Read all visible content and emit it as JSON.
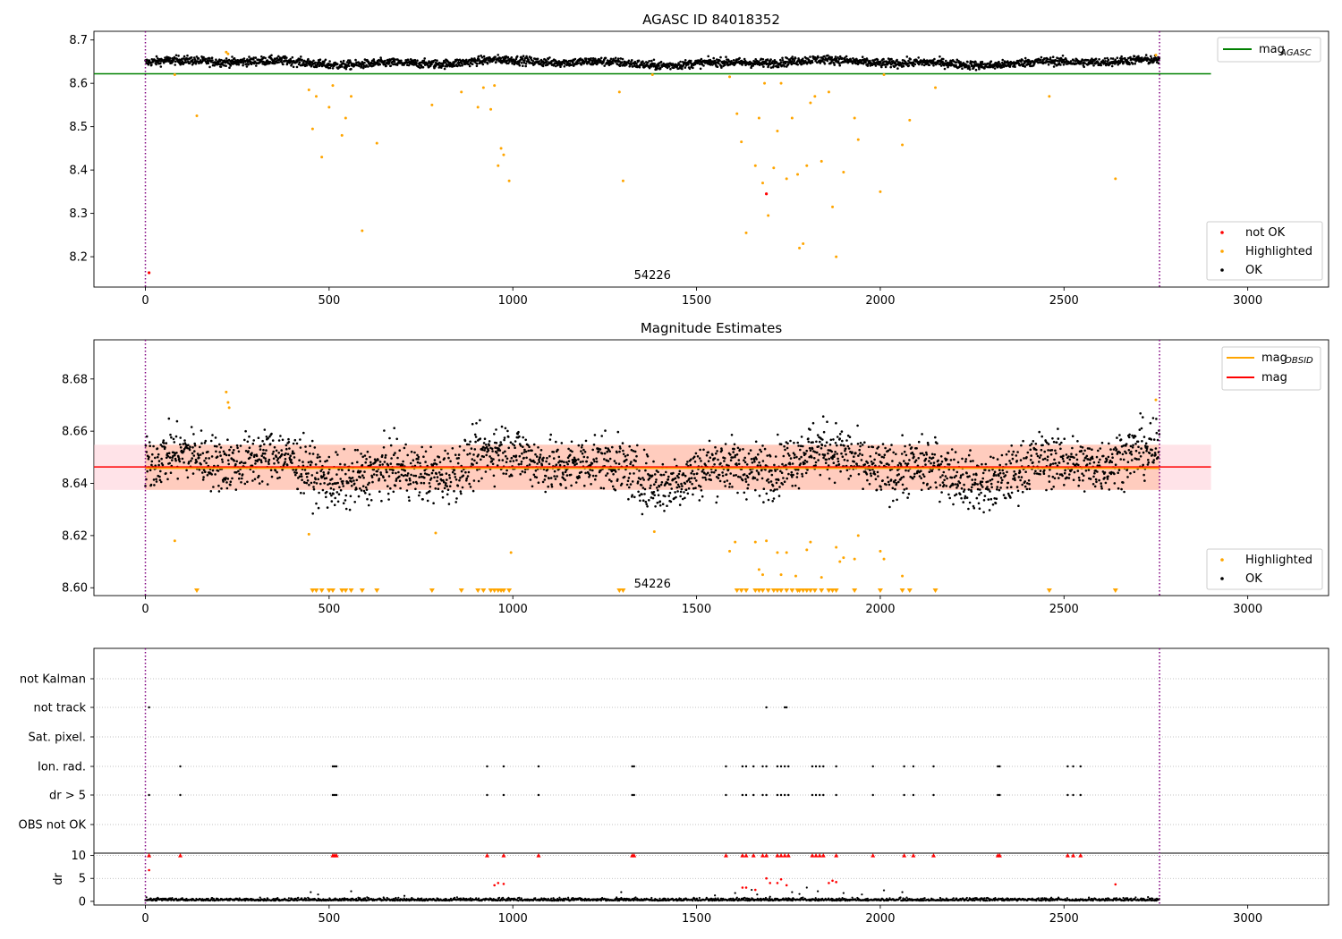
{
  "chart_data": [
    {
      "type": "scatter",
      "title": "AGASC ID 84018352",
      "xlabel": "",
      "ylabel": "",
      "xlim": [
        -140,
        3220
      ],
      "ylim": [
        8.13,
        8.72
      ],
      "x_ticks": [
        0,
        500,
        1000,
        1500,
        2000,
        2500,
        3000
      ],
      "y_ticks": [
        8.2,
        8.3,
        8.4,
        8.5,
        8.6,
        8.7
      ],
      "y_tick_labels": [
        "8.2",
        "8.3",
        "8.4",
        "8.5",
        "8.6",
        "8.7"
      ],
      "obsid_label": "54226",
      "obsid_label_x": 1380,
      "obs_boundaries": [
        0,
        2760
      ],
      "series": [
        {
          "name": "not OK",
          "color": "#ff0000",
          "x": [
            10,
            1690
          ],
          "y": [
            8.163,
            8.345
          ]
        },
        {
          "name": "Highlighted",
          "color": "#ffa500",
          "x": [
            80,
            140,
            220,
            225,
            445,
            455,
            465,
            480,
            500,
            510,
            535,
            545,
            560,
            590,
            630,
            780,
            860,
            905,
            920,
            940,
            950,
            960,
            968,
            975,
            990,
            1290,
            1300,
            1380,
            1590,
            1610,
            1622,
            1635,
            1660,
            1670,
            1680,
            1685,
            1695,
            1710,
            1720,
            1730,
            1745,
            1760,
            1775,
            1780,
            1790,
            1800,
            1810,
            1822,
            1840,
            1860,
            1870,
            1880,
            1900,
            1930,
            1940,
            2000,
            2010,
            2060,
            2080,
            2150,
            2460,
            2640,
            2750
          ],
          "y": [
            8.62,
            8.525,
            8.672,
            8.668,
            8.585,
            8.495,
            8.57,
            8.43,
            8.545,
            8.595,
            8.48,
            8.52,
            8.57,
            8.26,
            8.462,
            8.55,
            8.58,
            8.545,
            8.59,
            8.54,
            8.595,
            8.41,
            8.45,
            8.435,
            8.375,
            8.58,
            8.375,
            8.62,
            8.615,
            8.53,
            8.465,
            8.255,
            8.41,
            8.52,
            8.37,
            8.6,
            8.295,
            8.405,
            8.49,
            8.6,
            8.38,
            8.52,
            8.39,
            8.22,
            8.23,
            8.41,
            8.555,
            8.57,
            8.42,
            8.58,
            8.315,
            8.2,
            8.395,
            8.52,
            8.47,
            8.35,
            8.62,
            8.458,
            8.515,
            8.59,
            8.57,
            8.38,
            8.665
          ]
        },
        {
          "name": "OK",
          "color": "#000000",
          "x": [],
          "y": []
        }
      ],
      "ok_band": {
        "y_center": 8.648,
        "y_spread": 0.011,
        "x_range": [
          0,
          2760
        ]
      },
      "hlines": [
        {
          "name": "magAGASC",
          "color": "#008000",
          "y": 8.622,
          "x_range": [
            -140,
            2900
          ]
        }
      ],
      "legend_lines": [
        {
          "label": "mag",
          "sub": "AGASC",
          "color": "#008000"
        }
      ],
      "legend_points": [
        {
          "label": "not OK",
          "color": "#ff0000"
        },
        {
          "label": "Highlighted",
          "color": "#ffa500"
        },
        {
          "label": "OK",
          "color": "#000000"
        }
      ]
    },
    {
      "type": "scatter",
      "title": "Magnitude Estimates",
      "xlabel": "",
      "ylabel": "",
      "xlim": [
        -140,
        3220
      ],
      "ylim": [
        8.597,
        8.695
      ],
      "x_ticks": [
        0,
        500,
        1000,
        1500,
        2000,
        2500,
        3000
      ],
      "y_ticks": [
        8.6,
        8.62,
        8.64,
        8.66,
        8.68
      ],
      "y_tick_labels": [
        "8.60",
        "8.62",
        "8.64",
        "8.66",
        "8.68"
      ],
      "obsid_label": "54226",
      "obsid_label_x": 1380,
      "obs_boundaries": [
        0,
        2760
      ],
      "mag_line": {
        "y": 8.6463,
        "color": "#ff0000",
        "x_range": [
          -140,
          2900
        ]
      },
      "mag_obsid_line": {
        "y": 8.6458,
        "color": "#ffa500",
        "x_range": [
          0,
          2760
        ]
      },
      "band_outer": {
        "y0": 8.6375,
        "y1": 8.6548,
        "x_range": [
          -140,
          2900
        ],
        "color": "#ffc0cb"
      },
      "band_inner": {
        "y0": 8.6375,
        "y1": 8.6548,
        "x_range": [
          0,
          2760
        ],
        "color": "#ffa070"
      },
      "highlighted_points": {
        "color": "#ffa500",
        "x": [
          80,
          220,
          225,
          228,
          445,
          790,
          995,
          1385,
          1590,
          1605,
          1660,
          1670,
          1680,
          1690,
          1720,
          1730,
          1745,
          1770,
          1800,
          1810,
          1840,
          1880,
          1890,
          1900,
          1930,
          1940,
          2000,
          2010,
          2060,
          2750
        ],
        "y": [
          8.618,
          8.675,
          8.671,
          8.669,
          8.6205,
          8.621,
          8.6135,
          8.6215,
          8.614,
          8.6175,
          8.6175,
          8.607,
          8.605,
          8.618,
          8.6135,
          8.605,
          8.6135,
          8.6045,
          8.6145,
          8.6175,
          8.604,
          8.6155,
          8.61,
          8.6115,
          8.611,
          8.62,
          8.614,
          8.611,
          8.6045,
          8.672
        ]
      },
      "clipped_markers": {
        "color": "#ffa500",
        "x": [
          140,
          455,
          465,
          480,
          500,
          510,
          535,
          545,
          560,
          590,
          630,
          780,
          860,
          905,
          920,
          940,
          950,
          960,
          968,
          975,
          990,
          1290,
          1300,
          1610,
          1622,
          1635,
          1660,
          1670,
          1680,
          1695,
          1710,
          1720,
          1730,
          1745,
          1760,
          1775,
          1780,
          1790,
          1800,
          1810,
          1822,
          1840,
          1860,
          1870,
          1880,
          1930,
          2000,
          2060,
          2080,
          2150,
          2460,
          2640
        ]
      },
      "legend_lines": [
        {
          "label": "mag",
          "sub": "OBSID",
          "color": "#ffa500"
        },
        {
          "label": "mag",
          "sub": "",
          "color": "#ff0000"
        }
      ],
      "legend_points": [
        {
          "label": "Highlighted",
          "color": "#ffa500"
        },
        {
          "label": "OK",
          "color": "#000000"
        }
      ]
    },
    {
      "type": "scatter",
      "title": "",
      "xlim": [
        -140,
        3220
      ],
      "flag_rows": [
        "not Kalman",
        "not track",
        "Sat. pixel.",
        "Ion. rad.",
        "dr > 5",
        "OBS not OK"
      ],
      "flag_points": {
        "not Kalman": [],
        "not track": [
          10,
          1690,
          1740,
          1745
        ],
        "Sat. pixel.": [],
        "Ion. rad.": [
          95,
          510,
          515,
          520,
          930,
          975,
          1070,
          1325,
          1330,
          1580,
          1625,
          1635,
          1655,
          1680,
          1690,
          1720,
          1730,
          1740,
          1750,
          1815,
          1825,
          1835,
          1845,
          1880,
          1980,
          2065,
          2090,
          2145,
          2320,
          2325,
          2510,
          2525,
          2545
        ],
        "dr > 5": [
          10,
          95,
          510,
          515,
          520,
          930,
          975,
          1070,
          1325,
          1330,
          1580,
          1625,
          1635,
          1655,
          1680,
          1690,
          1720,
          1730,
          1740,
          1750,
          1815,
          1825,
          1835,
          1845,
          1880,
          1980,
          2065,
          2090,
          2145,
          2320,
          2325,
          2510,
          2525,
          2545
        ],
        "OBS not OK": []
      },
      "dr_panel": {
        "ylabel": "dr",
        "ylim": [
          -0.8,
          10.5
        ],
        "y_ticks": [
          0,
          5,
          10
        ],
        "y_tick_labels": [
          "0",
          "5",
          "10"
        ],
        "clip_at": 10,
        "red_clipped_x": [
          10,
          95,
          510,
          515,
          520,
          930,
          975,
          1070,
          1325,
          1330,
          1580,
          1625,
          1635,
          1655,
          1680,
          1690,
          1720,
          1730,
          1740,
          1750,
          1815,
          1825,
          1835,
          1845,
          1880,
          1980,
          2065,
          2090,
          2145,
          2320,
          2325,
          2510,
          2525,
          2545
        ],
        "red_points": {
          "x": [
            10,
            950,
            960,
            975,
            1625,
            1635,
            1660,
            1690,
            1700,
            1720,
            1730,
            1745,
            1860,
            1870,
            1880,
            2640
          ],
          "y": [
            6.8,
            3.5,
            4.0,
            3.8,
            3.0,
            3.0,
            2.5,
            5.0,
            4.0,
            4.0,
            4.8,
            3.5,
            4.0,
            4.5,
            4.2,
            3.7
          ]
        },
        "scattered_black": {
          "x": [
            450,
            470,
            560,
            705,
            1295,
            1550,
            1605,
            1650,
            1665,
            1700,
            1760,
            1780,
            1800,
            1830,
            1900,
            1950,
            2010,
            2060
          ],
          "y": [
            2.0,
            1.5,
            2.2,
            1.2,
            2.0,
            1.3,
            1.8,
            2.5,
            1.5,
            1.0,
            2.0,
            1.6,
            3.0,
            2.2,
            1.8,
            1.5,
            2.4,
            2.0
          ]
        }
      },
      "obs_boundaries": [
        0,
        2760
      ],
      "x_ticks": [
        0,
        500,
        1000,
        1500,
        2000,
        2500,
        3000
      ]
    }
  ]
}
